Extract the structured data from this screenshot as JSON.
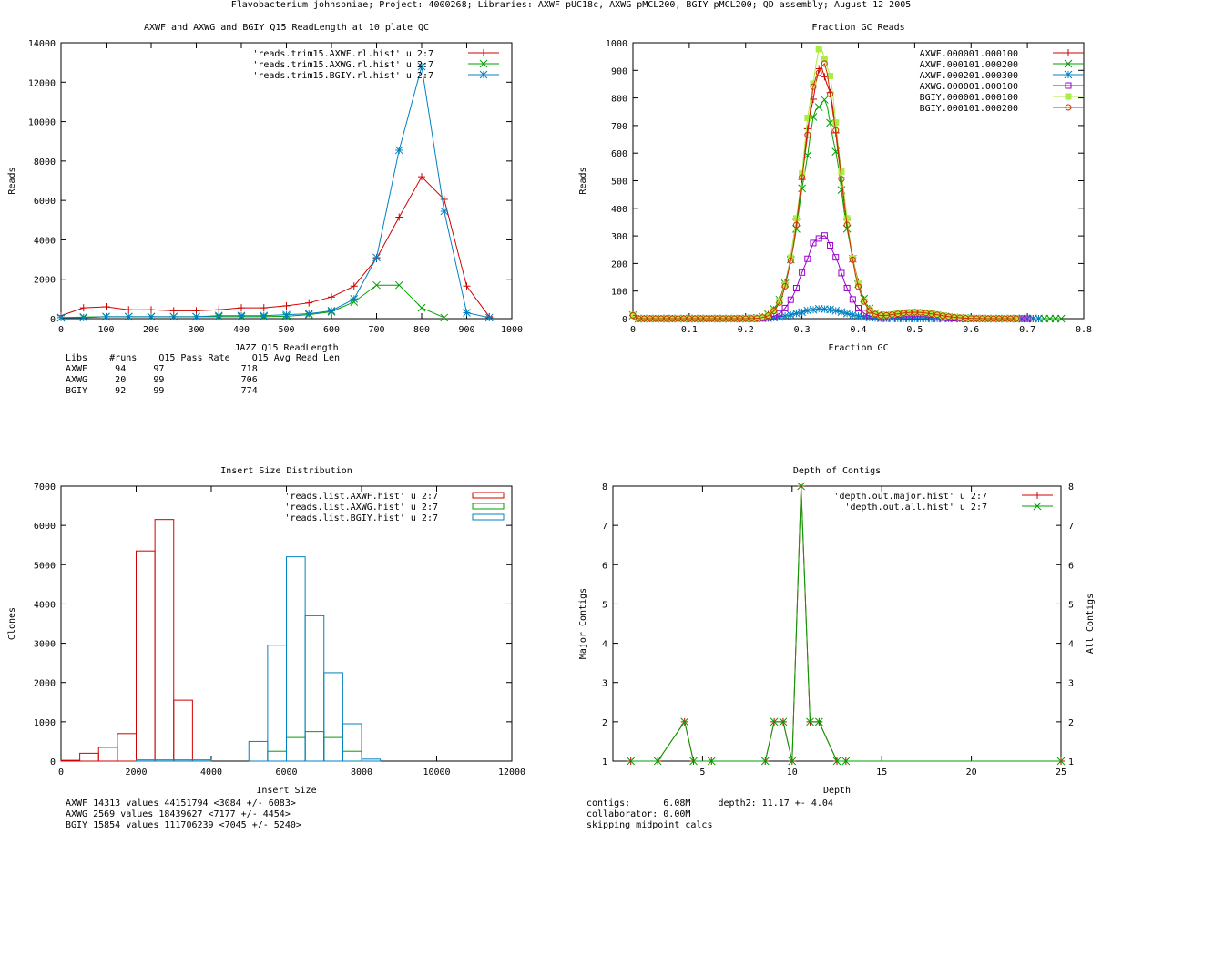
{
  "page_title": "Flavobacterium johnsoniae; Project: 4000268; Libraries: AXWF pUC18c, AXWG pMCL200, BGIY pMCL200; QD assembly; August 12 2005",
  "chart_data": [
    {
      "id": "readlength",
      "type": "line",
      "title": "AXWF and AXWG and BGIY Q15 ReadLength at 10 plate QC",
      "xlabel": "JAZZ Q15 ReadLength",
      "ylabel": "Reads",
      "xlim": [
        0,
        1000
      ],
      "ylim": [
        0,
        14000
      ],
      "xticks": [
        0,
        100,
        200,
        300,
        400,
        500,
        600,
        700,
        800,
        900,
        1000
      ],
      "yticks": [
        0,
        2000,
        4000,
        6000,
        8000,
        10000,
        12000,
        14000
      ],
      "legend_position": "top-right",
      "series": [
        {
          "name": "'reads.trim15.AXWF.rl.hist' u 2:7",
          "color": "#d00000",
          "marker": "plus",
          "x": [
            0,
            50,
            100,
            150,
            200,
            250,
            300,
            350,
            400,
            450,
            500,
            550,
            600,
            650,
            700,
            750,
            800,
            850,
            900,
            950
          ],
          "y": [
            150,
            550,
            600,
            450,
            450,
            400,
            400,
            450,
            550,
            550,
            650,
            800,
            1100,
            1650,
            3050,
            5150,
            7200,
            6050,
            1650,
            100
          ]
        },
        {
          "name": "'reads.trim15.AXWG.rl.hist' u 2:7",
          "color": "#00a000",
          "marker": "cross",
          "x": [
            0,
            50,
            100,
            150,
            200,
            250,
            300,
            350,
            400,
            450,
            500,
            550,
            600,
            650,
            700,
            750,
            800,
            850
          ],
          "y": [
            50,
            80,
            100,
            100,
            100,
            100,
            100,
            100,
            100,
            100,
            120,
            200,
            350,
            850,
            1700,
            1700,
            550,
            50
          ]
        },
        {
          "name": "'reads.trim15.BGIY.rl.hist' u 2:7",
          "color": "#0080c0",
          "marker": "star",
          "x": [
            0,
            50,
            100,
            150,
            200,
            250,
            300,
            350,
            400,
            450,
            500,
            550,
            600,
            650,
            700,
            750,
            800,
            850,
            900,
            950
          ],
          "y": [
            50,
            50,
            100,
            100,
            100,
            100,
            100,
            150,
            150,
            150,
            200,
            250,
            400,
            1000,
            3100,
            8550,
            12800,
            5450,
            300,
            50
          ]
        }
      ],
      "summary": {
        "headers": [
          "Libs",
          "#runs",
          "Q15 Pass Rate",
          "Q15 Avg Read Len"
        ],
        "rows": [
          [
            "AXWF",
            "94",
            "97",
            "718"
          ],
          [
            "AXWG",
            "20",
            "99",
            "706"
          ],
          [
            "BGIY",
            "92",
            "99",
            "774"
          ]
        ]
      }
    },
    {
      "id": "gc",
      "type": "line",
      "title": "Fraction GC Reads",
      "xlabel": "Fraction GC",
      "ylabel": "Reads",
      "xlim": [
        0,
        0.8
      ],
      "ylim": [
        0,
        1000
      ],
      "xticks": [
        0,
        0.1,
        0.2,
        0.3,
        0.4,
        0.5,
        0.6,
        0.7,
        0.8
      ],
      "yticks": [
        0,
        100,
        200,
        300,
        400,
        500,
        600,
        700,
        800,
        900,
        1000
      ],
      "legend_position": "top-right",
      "series": [
        {
          "name": "AXWF.000001.000100",
          "color": "#d00000",
          "marker": "plus",
          "peak": 900,
          "center": 0.335,
          "sigma": 0.033,
          "xmax": 0.72
        },
        {
          "name": "AXWF.000101.000200",
          "color": "#00a000",
          "marker": "cross",
          "peak": 790,
          "center": 0.335,
          "sigma": 0.034,
          "xmax": 0.76
        },
        {
          "name": "AXWF.000201.000300",
          "color": "#0080c0",
          "marker": "star",
          "peak": 35,
          "center": 0.335,
          "sigma": 0.04,
          "xmax": 0.72
        },
        {
          "name": "AXWG.000001.000100",
          "color": "#9900cc",
          "marker": "box",
          "peak": 300,
          "center": 0.335,
          "sigma": 0.032,
          "xmax": 0.7
        },
        {
          "name": "BGIY.000001.000100",
          "color": "#aaee44",
          "marker": "filledbox",
          "peak": 970,
          "center": 0.335,
          "sigma": 0.032,
          "xmax": 0.68
        },
        {
          "name": "BGIY.000101.000200",
          "color": "#cc3300",
          "marker": "circle",
          "peak": 920,
          "center": 0.335,
          "sigma": 0.032,
          "xmax": 0.68
        }
      ]
    },
    {
      "id": "insert",
      "type": "bar",
      "title": "Insert Size Distribution",
      "xlabel": "Insert Size",
      "ylabel": "Clones",
      "xlim": [
        0,
        12000
      ],
      "ylim": [
        0,
        7000
      ],
      "xticks": [
        0,
        2000,
        4000,
        6000,
        8000,
        10000,
        12000
      ],
      "yticks": [
        0,
        1000,
        2000,
        3000,
        4000,
        5000,
        6000,
        7000
      ],
      "legend_position": "top-right",
      "bin_width": 500,
      "series": [
        {
          "name": "'reads.list.AXWF.hist' u 2:7",
          "color": "#d00000",
          "bins": [
            250,
            750,
            1250,
            1750,
            2250,
            2750,
            3250,
            3750
          ],
          "values": [
            20,
            200,
            350,
            700,
            5350,
            6150,
            1550,
            0
          ]
        },
        {
          "name": "'reads.list.AXWG.hist' u 2:7",
          "color": "#00a000",
          "bins": [
            5750,
            6250,
            6750,
            7250,
            7750
          ],
          "values": [
            250,
            600,
            750,
            600,
            250
          ]
        },
        {
          "name": "'reads.list.BGIY.hist' u 2:7",
          "color": "#0080c0",
          "bins": [
            1250,
            1750,
            2250,
            2750,
            3250,
            3750,
            5250,
            5750,
            6250,
            6750,
            7250,
            7750,
            8250
          ],
          "values": [
            0,
            0,
            30,
            30,
            30,
            30,
            500,
            2950,
            5200,
            3700,
            2250,
            950,
            50
          ]
        }
      ],
      "summary": [
        "AXWF 14313 values 44151794 <3084 +/- 6083>",
        "AXWG 2569 values 18439627 <7177 +/- 4454>",
        "BGIY 15854 values 111706239 <7045 +/- 5240>"
      ]
    },
    {
      "id": "depth",
      "type": "line",
      "title": "Depth of Contigs",
      "xlabel": "Depth",
      "ylabel": "Major Contigs",
      "y2label": "All Contigs",
      "xlim": [
        0,
        25
      ],
      "ylim": [
        1,
        8
      ],
      "xticks": [
        5,
        10,
        15,
        20,
        25
      ],
      "yticks": [
        1,
        2,
        3,
        4,
        5,
        6,
        7,
        8
      ],
      "legend_position": "top-right",
      "series": [
        {
          "name": "'depth.out.major.hist' u 2:7",
          "color": "#d00000",
          "marker": "plus",
          "x": [
            1,
            2.5,
            4,
            4.5,
            5.5,
            8.5,
            9,
            9.5,
            10,
            10.5,
            11,
            11.5,
            12.5,
            13,
            25
          ],
          "y": [
            1,
            1,
            2,
            1,
            1,
            1,
            2,
            2,
            1,
            8,
            2,
            2,
            1,
            1,
            1
          ]
        },
        {
          "name": "'depth.out.all.hist' u 2:7",
          "color": "#00a000",
          "marker": "cross",
          "x": [
            1,
            2.5,
            4,
            4.5,
            5.5,
            8.5,
            9,
            9.5,
            10,
            10.5,
            11,
            11.5,
            12.5,
            13,
            25
          ],
          "y": [
            1,
            1,
            2,
            1,
            1,
            1,
            2,
            2,
            1,
            8,
            2,
            2,
            1,
            1,
            1
          ]
        }
      ],
      "summary": [
        "contigs:      6.08M     depth2: 11.17 +- 4.04",
        "collaborator: 0.00M",
        "skipping midpoint calcs"
      ]
    }
  ]
}
